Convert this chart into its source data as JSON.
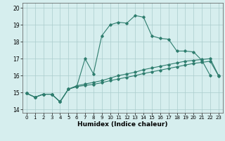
{
  "xlabel": "Humidex (Indice chaleur)",
  "xlim": [
    -0.5,
    23.5
  ],
  "ylim": [
    13.8,
    20.3
  ],
  "yticks": [
    14,
    15,
    16,
    17,
    18,
    19,
    20
  ],
  "xticks": [
    0,
    1,
    2,
    3,
    4,
    5,
    6,
    7,
    8,
    9,
    10,
    11,
    12,
    13,
    14,
    15,
    16,
    17,
    18,
    19,
    20,
    21,
    22,
    23
  ],
  "xtick_labels": [
    "0",
    "1",
    "2",
    "3",
    "4",
    "5",
    "6",
    "7",
    "8",
    "9",
    "10",
    "11",
    "12",
    "13",
    "14",
    "15",
    "16",
    "17",
    "18",
    "19",
    "20",
    "21",
    "22",
    "23"
  ],
  "bg_color": "#d6eeee",
  "grid_color": "#aacccc",
  "line_color": "#2e7d6e",
  "line1_x": [
    0,
    1,
    2,
    3,
    4,
    5,
    6,
    7,
    8,
    9,
    10,
    11,
    12,
    13,
    14,
    15,
    16,
    17,
    18,
    19,
    20,
    21,
    22
  ],
  "line1_y": [
    14.95,
    14.72,
    14.9,
    14.9,
    14.45,
    15.2,
    15.35,
    17.0,
    16.1,
    18.35,
    19.0,
    19.15,
    19.1,
    19.55,
    19.45,
    18.35,
    18.2,
    18.15,
    17.45,
    17.45,
    17.4,
    16.9,
    16.0
  ],
  "line2_x": [
    0,
    1,
    2,
    3,
    4,
    5,
    6,
    7,
    8,
    9,
    10,
    11,
    12,
    13,
    14,
    15,
    16,
    17,
    18,
    19,
    20,
    21,
    22,
    23
  ],
  "line2_y": [
    14.95,
    14.72,
    14.9,
    14.9,
    14.45,
    15.2,
    15.4,
    15.5,
    15.6,
    15.7,
    15.85,
    16.0,
    16.1,
    16.2,
    16.35,
    16.45,
    16.55,
    16.65,
    16.75,
    16.85,
    16.9,
    16.95,
    17.0,
    16.0
  ],
  "line3_x": [
    0,
    1,
    2,
    3,
    4,
    5,
    6,
    7,
    8,
    9,
    10,
    11,
    12,
    13,
    14,
    15,
    16,
    17,
    18,
    19,
    20,
    21,
    22,
    23
  ],
  "line3_y": [
    14.95,
    14.72,
    14.9,
    14.9,
    14.45,
    15.2,
    15.35,
    15.42,
    15.48,
    15.58,
    15.7,
    15.8,
    15.9,
    16.0,
    16.12,
    16.22,
    16.32,
    16.42,
    16.52,
    16.62,
    16.72,
    16.78,
    16.85,
    15.98
  ]
}
